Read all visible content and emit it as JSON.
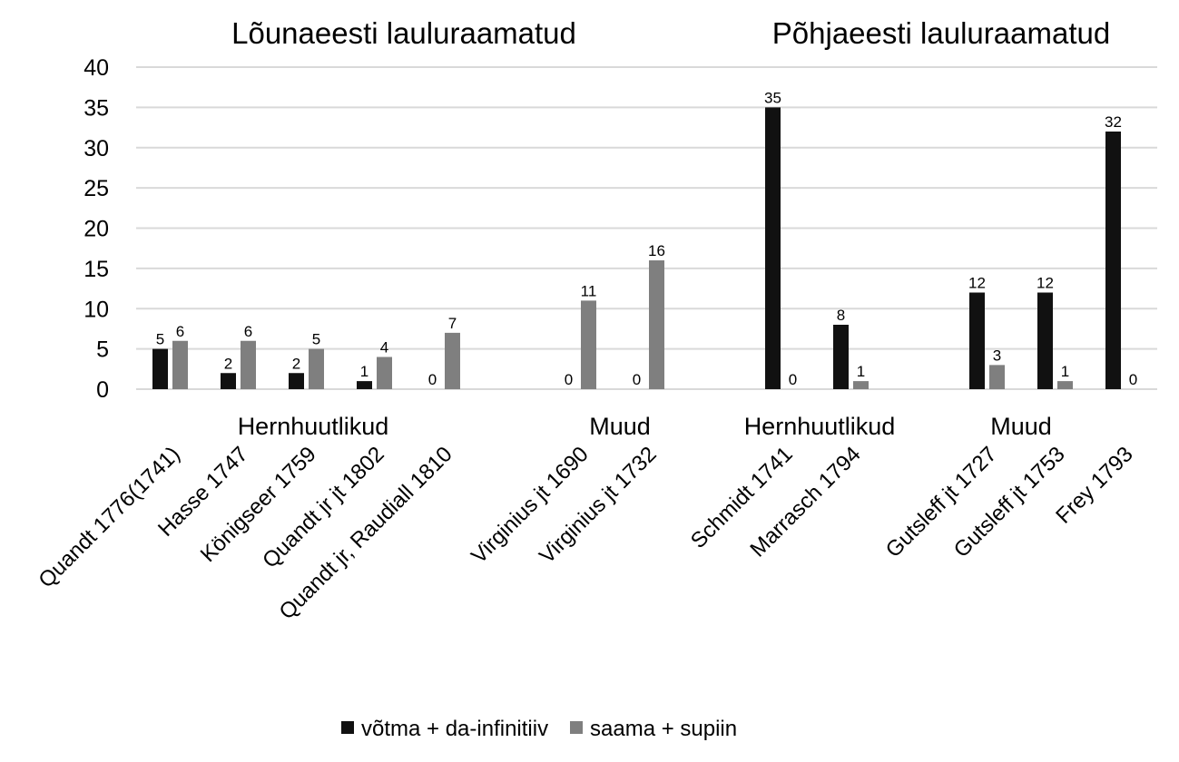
{
  "chart_data": {
    "type": "bar",
    "titles": [
      "Lõunaeesti lauluraamatud",
      "Põhjaeesti lauluraamatud"
    ],
    "categories": [
      "Quandt 1776(1741)",
      "Hasse 1747",
      "Königseer 1759",
      "Quandt jr jt 1802",
      "Quandt jr, Raudiall 1810",
      "",
      "Virginius jt 1690",
      "Virginius jt 1732",
      "",
      "Schmidt 1741",
      "Marrasch 1794",
      "",
      "Gutsleff jt 1727",
      "Gutsleff jt 1753",
      "Frey 1793"
    ],
    "groups": [
      "Hernhuutlikud",
      "Muud",
      "Hernhuutlikud",
      "Muud"
    ],
    "series": [
      {
        "name": "võtma + da-infinitiiv",
        "color": "#111111",
        "values": [
          5,
          2,
          2,
          1,
          0,
          null,
          0,
          0,
          null,
          35,
          8,
          null,
          12,
          12,
          32
        ]
      },
      {
        "name": "saama + supiin",
        "color": "#7f7f7f",
        "values": [
          6,
          6,
          5,
          4,
          7,
          null,
          11,
          16,
          null,
          0,
          1,
          null,
          3,
          1,
          0
        ]
      }
    ],
    "ylim": [
      0,
      40
    ],
    "yticks": [
      0,
      5,
      10,
      15,
      20,
      25,
      30,
      35,
      40
    ],
    "grid": true,
    "legend": "bottom",
    "xlabel": "",
    "ylabel": ""
  }
}
